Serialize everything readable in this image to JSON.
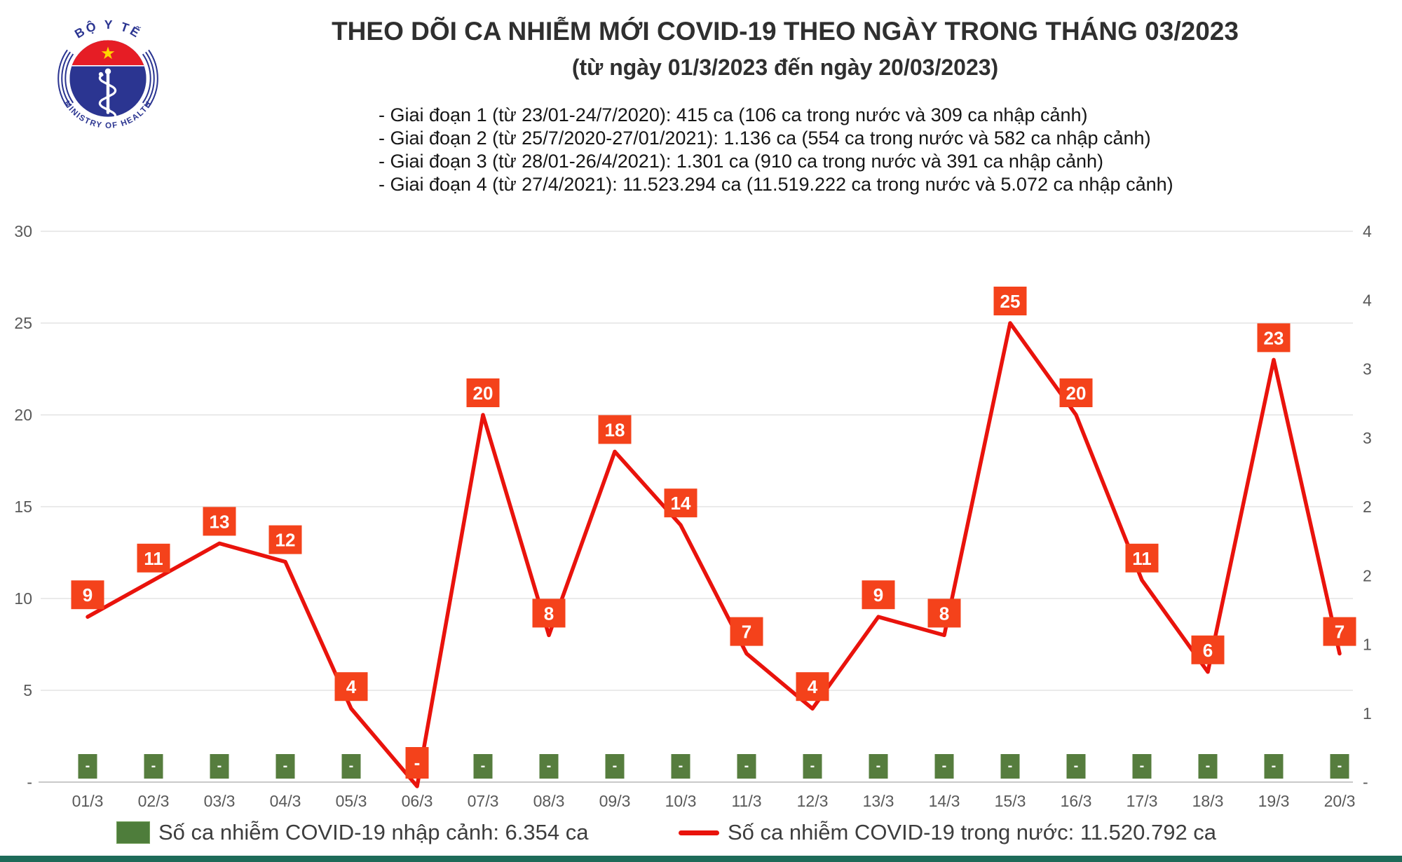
{
  "logo": {
    "top_text": "BỘ Y TẾ",
    "bottom_text": "MINISTRY OF HEALTH",
    "colors": {
      "blue": "#2b3591",
      "red": "#e61d25",
      "star_yellow": "#ffd500"
    }
  },
  "header": {
    "title": "THEO DÕI CA NHIỄM MỚI COVID-19 THEO NGÀY TRONG THÁNG 03/2023",
    "subtitle": "(từ ngày 01/3/2023 đến ngày 20/03/2023)",
    "bullets": [
      "- Giai đoạn 1 (từ 23/01-24/7/2020): 415 ca (106 ca trong nước và 309 ca nhập cảnh)",
      "- Giai đoạn 2 (từ 25/7/2020-27/01/2021): 1.136 ca (554 ca trong nước và 582 ca nhập cảnh)",
      "- Giai đoạn 3 (từ 28/01-26/4/2021): 1.301 ca (910 ca trong nước và 391 ca nhập cảnh)",
      "- Giai đoạn 4 (từ 27/4/2021): 11.523.294 ca (11.519.222 ca trong nước và 5.072 ca nhập cảnh)"
    ]
  },
  "chart_data": {
    "type": "line+bar",
    "categories": [
      "01/3",
      "02/3",
      "03/3",
      "04/3",
      "05/3",
      "06/3",
      "07/3",
      "08/3",
      "09/3",
      "10/3",
      "11/3",
      "12/3",
      "13/3",
      "14/3",
      "15/3",
      "16/3",
      "17/3",
      "18/3",
      "19/3",
      "20/3"
    ],
    "series": [
      {
        "name": "Số ca nhiễm COVID-19 nhập cảnh",
        "type": "bar",
        "color": "#567d3e",
        "values": [
          0,
          0,
          0,
          0,
          0,
          0,
          0,
          0,
          0,
          0,
          0,
          0,
          0,
          0,
          0,
          0,
          0,
          0,
          0,
          0
        ],
        "labels": [
          "-",
          "-",
          "-",
          "-",
          "-",
          "-",
          "-",
          "-",
          "-",
          "-",
          "-",
          "-",
          "-",
          "-",
          "-",
          "-",
          "-",
          "-",
          "-",
          "-"
        ]
      },
      {
        "name": "Số ca nhiễm COVID-19 trong nước",
        "type": "line",
        "color": "#e9130c",
        "label_box_color": "#f4421b",
        "values": [
          9,
          11,
          13,
          12,
          4,
          0,
          20,
          8,
          18,
          14,
          7,
          4,
          9,
          8,
          25,
          20,
          11,
          6,
          23,
          7
        ],
        "labels": [
          "9",
          "11",
          "13",
          "12",
          "4",
          "-",
          "20",
          "8",
          "18",
          "14",
          "7",
          "4",
          "9",
          "8",
          "25",
          "20",
          "11",
          "6",
          "23",
          "7"
        ]
      }
    ],
    "left_axis": {
      "ticks": [
        "30",
        "25",
        "20",
        "15",
        "10",
        "5",
        "-"
      ],
      "values": [
        30,
        25,
        20,
        15,
        10,
        5,
        0
      ],
      "min": 0,
      "max": 30
    },
    "right_axis": {
      "ticks_top_to_bottom": [
        "4",
        "4",
        "3",
        "3",
        "2",
        "2",
        "1",
        "1",
        "-"
      ]
    },
    "grid": true,
    "legend_position": "bottom",
    "title": "THEO DÕI CA NHIỄM MỚI COVID-19 THEO NGÀY TRONG THÁNG 03/2023"
  },
  "legend": {
    "items": [
      {
        "swatch": "green-square",
        "label": "Số ca nhiễm COVID-19 nhập cảnh: 6.354 ca"
      },
      {
        "swatch": "red-line",
        "label": "Số ca nhiễm COVID-19 trong nước: 11.520.792 ca"
      }
    ]
  }
}
